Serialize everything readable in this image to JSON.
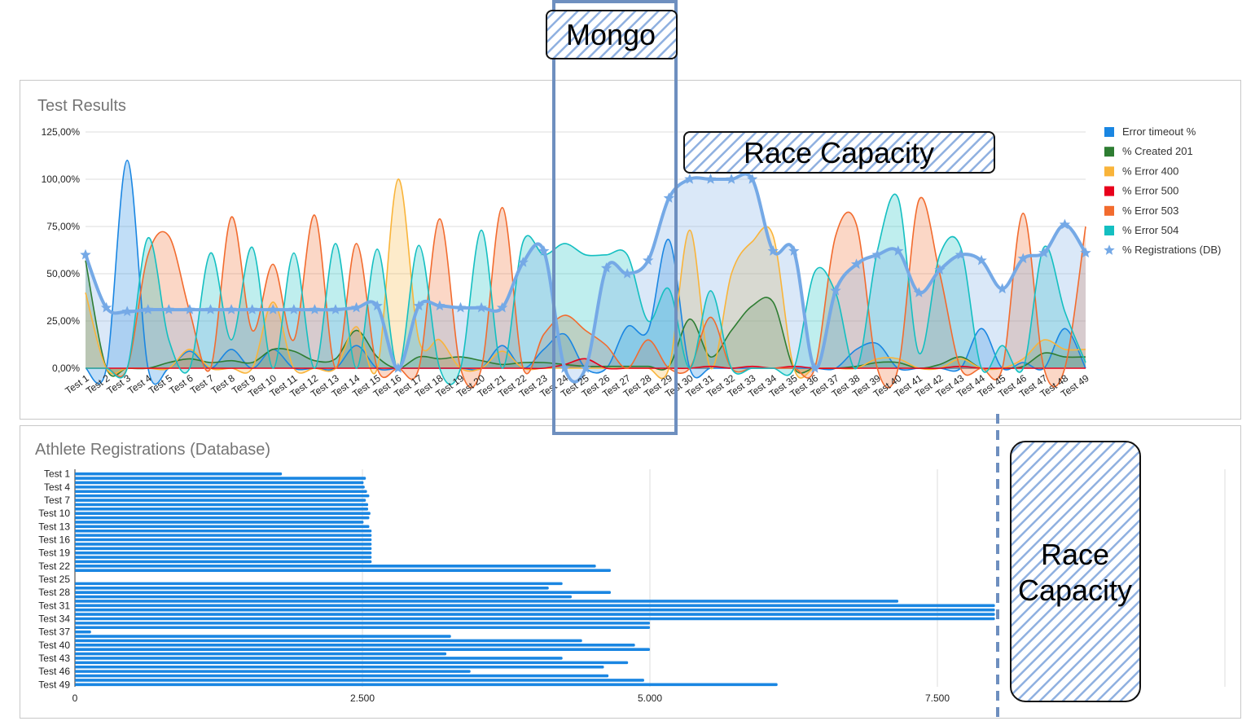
{
  "chart_data": [
    {
      "type": "area",
      "title": "Test Results",
      "ylim": [
        0,
        125
      ],
      "yticks": [
        "0,00%",
        "25,00%",
        "50,00%",
        "75,00%",
        "100,00%",
        "125,00%"
      ],
      "categories": [
        "Test 1",
        "Test 2",
        "Test 3",
        "Test 4",
        "Test 5",
        "Test 6",
        "Test 7",
        "Test 8",
        "Test 9",
        "Test 10",
        "Test 11",
        "Test 12",
        "Test 13",
        "Test 14",
        "Test 15",
        "Test 16",
        "Test 17",
        "Test 18",
        "Test 19",
        "Test 20",
        "Test 21",
        "Test 22",
        "Test 23",
        "Test 24",
        "Test 25",
        "Test 26",
        "Test 27",
        "Test 28",
        "Test 29",
        "Test 30",
        "Test 31",
        "Test 32",
        "Test 33",
        "Test 34",
        "Test 35",
        "Test 36",
        "Test 37",
        "Test 38",
        "Test 39",
        "Test 40",
        "Test 41",
        "Test 42",
        "Test 43",
        "Test 44",
        "Test 45",
        "Test 46",
        "Test 47",
        "Test 48",
        "Test 49"
      ],
      "grid": true,
      "legend_position": "right",
      "series": [
        {
          "name": "Error timeout %",
          "color": "#1a86e2",
          "values": [
            0,
            0,
            110,
            0,
            0,
            9,
            0,
            10,
            0,
            10,
            0,
            0,
            0,
            12,
            0,
            0,
            0,
            0,
            0,
            0,
            12,
            0,
            10,
            18,
            0,
            0,
            22,
            20,
            68,
            0,
            0,
            0,
            0,
            0,
            0,
            0,
            0,
            10,
            13,
            0,
            0,
            0,
            0,
            21,
            0,
            3,
            0,
            21,
            0
          ]
        },
        {
          "name": "% Created 201",
          "color": "#2e7d32",
          "values": [
            57,
            0,
            0,
            0,
            3,
            5,
            3,
            4,
            3,
            10,
            9,
            4,
            5,
            20,
            6,
            0,
            6,
            5,
            6,
            4,
            2,
            3,
            3,
            2,
            1,
            1,
            1,
            1,
            1,
            26,
            6,
            20,
            33,
            35,
            0,
            0,
            0,
            1,
            3,
            3,
            0,
            2,
            6,
            0,
            0,
            1,
            8,
            6,
            6
          ]
        },
        {
          "name": "% Error 400",
          "color": "#f9b43a",
          "values": [
            40,
            0,
            0,
            0,
            0,
            10,
            0,
            0,
            0,
            35,
            0,
            0,
            0,
            22,
            0,
            100,
            15,
            15,
            0,
            0,
            9,
            0,
            0,
            0,
            0,
            0,
            0,
            0,
            0,
            73,
            0,
            50,
            67,
            70,
            0,
            0,
            0,
            0,
            5,
            5,
            0,
            0,
            5,
            0,
            0,
            5,
            15,
            10,
            10
          ]
        },
        {
          "name": "% Error 500",
          "color": "#e8001c",
          "values": [
            0,
            0,
            0,
            0,
            0,
            0,
            0,
            0,
            0,
            0,
            0,
            0,
            0,
            0,
            0,
            0,
            0,
            0,
            0,
            0,
            0,
            0,
            0,
            2,
            5,
            0,
            0,
            0,
            0,
            0,
            1,
            0,
            1,
            0,
            1,
            0,
            0,
            0,
            0,
            0,
            0,
            0,
            1,
            0,
            0,
            0,
            0,
            0,
            0
          ]
        },
        {
          "name": "% Error 503",
          "color": "#f26b2e",
          "values": [
            0,
            0,
            0,
            60,
            70,
            30,
            0,
            80,
            20,
            55,
            15,
            81,
            0,
            66,
            0,
            0,
            0,
            79,
            0,
            0,
            85,
            0,
            18,
            28,
            20,
            12,
            0,
            15,
            0,
            0,
            27,
            0,
            0,
            0,
            0,
            0,
            70,
            76,
            0,
            0,
            89,
            50,
            0,
            0,
            0,
            82,
            0,
            0,
            75
          ]
        },
        {
          "name": "% Error 504",
          "color": "#14bfc1",
          "values": [
            0,
            0,
            0,
            69,
            15,
            0,
            61,
            15,
            64,
            0,
            61,
            0,
            66,
            0,
            63,
            0,
            65,
            0,
            0,
            73,
            0,
            67,
            60,
            66,
            60,
            60,
            60,
            25,
            42,
            0,
            41,
            0,
            0,
            0,
            0,
            51,
            40,
            0,
            62,
            90,
            8,
            60,
            64,
            0,
            12,
            0,
            64,
            30,
            3
          ]
        },
        {
          "name": "% Registrations (DB)",
          "color": "#75a9e6",
          "marker": "star",
          "values": [
            60,
            32,
            30,
            31,
            31,
            31,
            31,
            31,
            31,
            31,
            31,
            31,
            31,
            32,
            33,
            0,
            33,
            33,
            32,
            32,
            32,
            56,
            62,
            0,
            0,
            53,
            50,
            57,
            90,
            100,
            100,
            100,
            100,
            62,
            62,
            0,
            41,
            55,
            60,
            62,
            40,
            52,
            60,
            57,
            42,
            58,
            61,
            76,
            61
          ]
        }
      ]
    },
    {
      "type": "bar",
      "orientation": "horizontal",
      "title": "Athlete Registrations (Database)",
      "xlim": [
        0,
        10000
      ],
      "xticks": [
        "0",
        "2.500",
        "5.000",
        "7.500"
      ],
      "categories": [
        "Test 1",
        "Test 2",
        "Test 3",
        "Test 4",
        "Test 5",
        "Test 6",
        "Test 7",
        "Test 8",
        "Test 9",
        "Test 10",
        "Test 11",
        "Test 12",
        "Test 13",
        "Test 14",
        "Test 15",
        "Test 16",
        "Test 17",
        "Test 18",
        "Test 19",
        "Test 20",
        "Test 21",
        "Test 22",
        "Test 23",
        "Test 24",
        "Test 25",
        "Test 26",
        "Test 27",
        "Test 28",
        "Test 29",
        "Test 30",
        "Test 31",
        "Test 32",
        "Test 33",
        "Test 34",
        "Test 35",
        "Test 36",
        "Test 37",
        "Test 38",
        "Test 39",
        "Test 40",
        "Test 41",
        "Test 42",
        "Test 43",
        "Test 44",
        "Test 45",
        "Test 46",
        "Test 47",
        "Test 48",
        "Test 49"
      ],
      "visible_category_labels": [
        "Test 1",
        "Test 4",
        "Test 7",
        "Test 10",
        "Test 13",
        "Test 16",
        "Test 19",
        "Test 22",
        "Test 25",
        "Test 28",
        "Test 31",
        "Test 34",
        "Test 37",
        "Test 40",
        "Test 43",
        "Test 46",
        "Test 49"
      ],
      "color": "#1a86e2",
      "values": [
        1800,
        2530,
        2510,
        2520,
        2540,
        2560,
        2530,
        2550,
        2550,
        2570,
        2560,
        2510,
        2560,
        2580,
        2580,
        2580,
        2580,
        2580,
        2580,
        2580,
        2580,
        4530,
        4660,
        0,
        0,
        4240,
        4120,
        4660,
        4320,
        7160,
        8000,
        8000,
        8000,
        8000,
        5000,
        5000,
        140,
        3270,
        4410,
        4870,
        5000,
        3230,
        4240,
        4810,
        4600,
        3440,
        4640,
        4950,
        6110
      ]
    }
  ],
  "annotations": {
    "mongo_label": "Mongo",
    "race_capacity_top": "Race Capacity",
    "race_capacity_side_line1": "Race",
    "race_capacity_side_line2": "Capacity"
  }
}
